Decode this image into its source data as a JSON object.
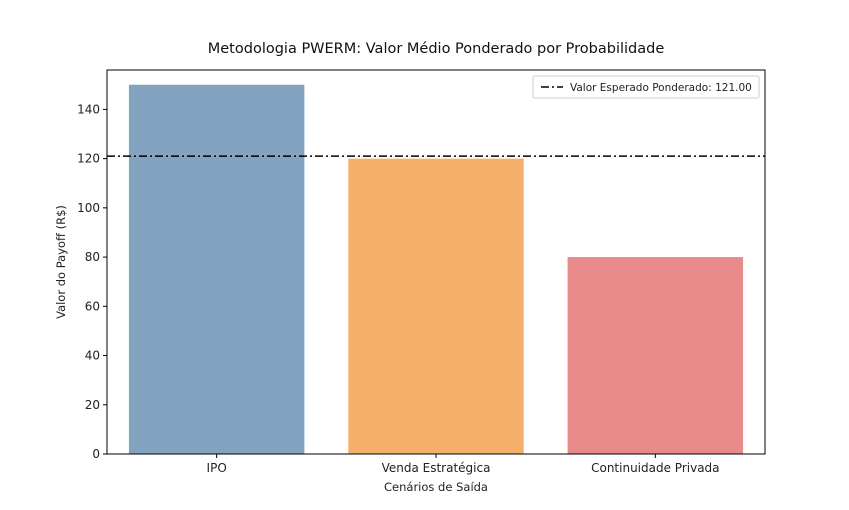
{
  "chart_data": {
    "type": "bar",
    "title": "Metodologia PWERM: Valor Médio Ponderado por Probabilidade",
    "xlabel": "Cenários de Saída",
    "ylabel": "Valor do Payoff (R$)",
    "categories": [
      "IPO",
      "Venda Estratégica",
      "Continuidade Privada"
    ],
    "values": [
      150,
      120,
      80
    ],
    "colors": [
      "#82a2c0",
      "#f5af6a",
      "#e88a8a"
    ],
    "ylim": [
      0,
      156
    ],
    "yticks": [
      0,
      20,
      40,
      60,
      80,
      100,
      120,
      140
    ],
    "grid": false,
    "reference_line": {
      "value": 121.0,
      "label": "Valor Esperado Ponderado: 121.00",
      "style": "dash-dot",
      "color": "#000000"
    },
    "legend": {
      "position": "top-right"
    }
  }
}
